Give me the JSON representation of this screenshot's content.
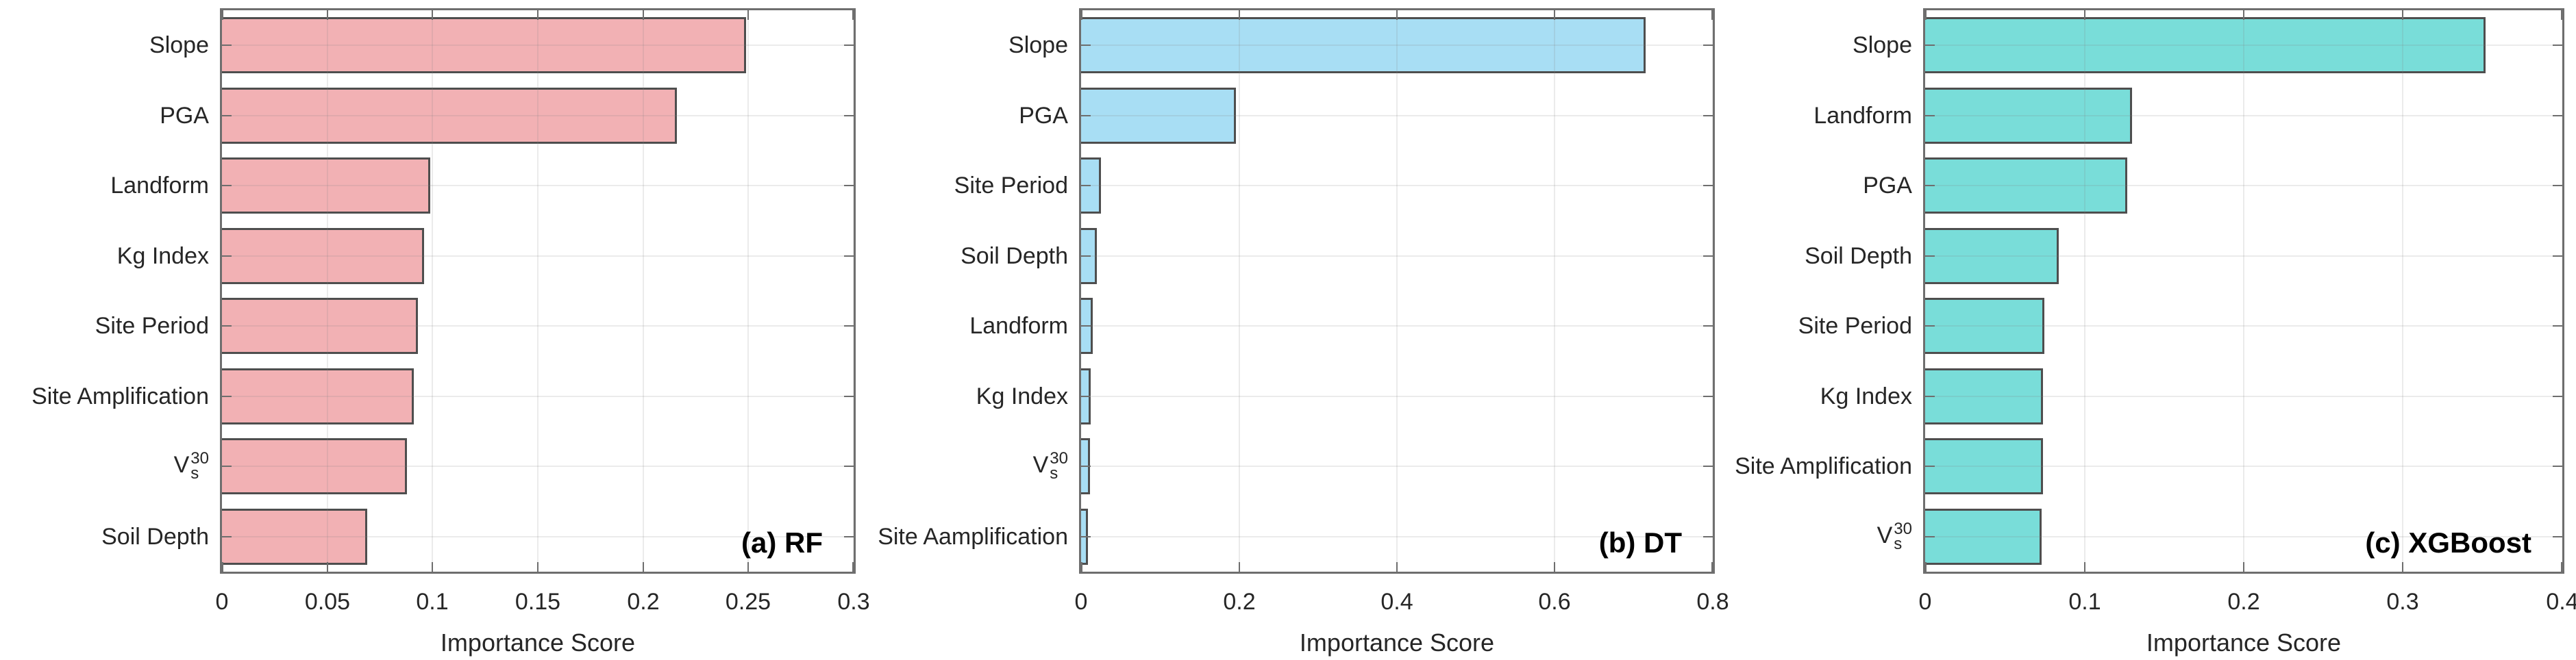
{
  "figure": {
    "background": "#ffffff",
    "axis_color": "#6e6e6e",
    "text_color": "#262626",
    "xlabel": "Importance Score"
  },
  "chart_data": [
    {
      "type": "bar",
      "orientation": "horizontal",
      "panel_label": "(a) RF",
      "title": "",
      "xlabel": "Importance Score",
      "ylabel": "",
      "xlim": [
        0,
        0.3
      ],
      "xticks": [
        0,
        0.05,
        0.1,
        0.15,
        0.2,
        0.25,
        0.3
      ],
      "xtick_labels": [
        "0",
        "0.05",
        "0.1",
        "0.15",
        "0.2",
        "0.25",
        "0.3"
      ],
      "grid": "on",
      "legend": "none",
      "bar_color": "#F2B1B4",
      "bar_edge_color": "#4e4e4e",
      "categories": [
        "Slope",
        "PGA",
        "Landform",
        "Kg Index",
        "Site Period",
        "Site Amplification",
        "Vs30",
        "Soil Depth"
      ],
      "values": [
        0.249,
        0.216,
        0.099,
        0.096,
        0.093,
        0.091,
        0.088,
        0.069
      ]
    },
    {
      "type": "bar",
      "orientation": "horizontal",
      "panel_label": "(b) DT",
      "title": "",
      "xlabel": "Importance Score",
      "ylabel": "",
      "xlim": [
        0,
        0.8
      ],
      "xticks": [
        0,
        0.2,
        0.4,
        0.6,
        0.8
      ],
      "xtick_labels": [
        "0",
        "0.2",
        "0.4",
        "0.6",
        "0.8"
      ],
      "grid": "on",
      "legend": "none",
      "bar_color": "#A8DEF4",
      "bar_edge_color": "#4e4e4e",
      "categories": [
        "Slope",
        "PGA",
        "Site Period",
        "Soil Depth",
        "Landform",
        "Kg Index",
        "Vs30",
        "Site Aamplification"
      ],
      "values": [
        0.715,
        0.196,
        0.025,
        0.02,
        0.015,
        0.012,
        0.011,
        0.009
      ]
    },
    {
      "type": "bar",
      "orientation": "horizontal",
      "panel_label": "(c) XGBoost",
      "title": "",
      "xlabel": "Importance Score",
      "ylabel": "",
      "xlim": [
        0,
        0.4
      ],
      "xticks": [
        0,
        0.1,
        0.2,
        0.3,
        0.4
      ],
      "xtick_labels": [
        "0",
        "0.1",
        "0.2",
        "0.3",
        "0.4"
      ],
      "grid": "on",
      "legend": "none",
      "bar_color": "#79DDD9",
      "bar_edge_color": "#4e4e4e",
      "categories": [
        "Slope",
        "Landform",
        "PGA",
        "Soil Depth",
        "Site Period",
        "Kg Index",
        "Site Amplification",
        "Vs30"
      ],
      "values": [
        0.352,
        0.13,
        0.127,
        0.084,
        0.075,
        0.074,
        0.074,
        0.073
      ]
    }
  ],
  "rich_labels": {
    "Vs30": {
      "base": "V",
      "sup": "30",
      "sub": "s"
    }
  }
}
